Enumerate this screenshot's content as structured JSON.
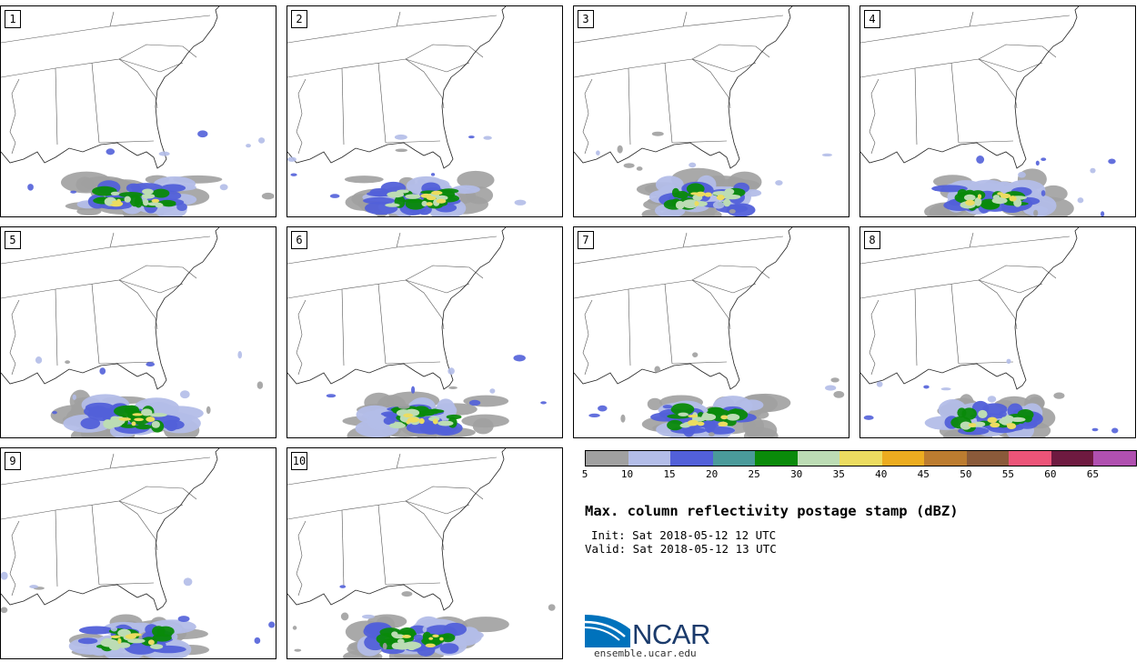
{
  "panels": [
    {
      "label": "1"
    },
    {
      "label": "2"
    },
    {
      "label": "3"
    },
    {
      "label": "4"
    },
    {
      "label": "5"
    },
    {
      "label": "6"
    },
    {
      "label": "7"
    },
    {
      "label": "8"
    },
    {
      "label": "9"
    },
    {
      "label": "10"
    }
  ],
  "colorbar": {
    "colors": [
      "#a0a0a0",
      "#b3bde8",
      "#5260d9",
      "#4a9a9a",
      "#0a8a0a",
      "#bcdcb4",
      "#ecdc60",
      "#ecac20",
      "#bc7c30",
      "#8a5a3a",
      "#ec5478",
      "#6e1a40",
      "#b050b0"
    ],
    "ticks": [
      "5",
      "10",
      "15",
      "20",
      "25",
      "30",
      "35",
      "40",
      "45",
      "50",
      "55",
      "60",
      "65"
    ]
  },
  "title": "Max. column reflectivity postage stamp (dBZ)",
  "init": "Init: Sat 2018-05-12 12 UTC",
  "valid": "Valid: Sat 2018-05-12 13 UTC",
  "logo": {
    "text": "NCAR",
    "url": "ensemble.ucar.edu",
    "color": "#0072bc"
  }
}
